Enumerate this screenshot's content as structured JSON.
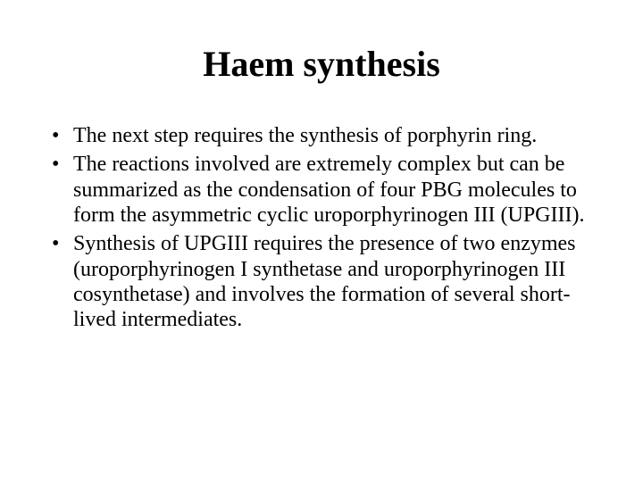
{
  "slide": {
    "title": "Haem synthesis",
    "title_fontsize": 40,
    "title_weight": "bold",
    "body_fontsize": 24,
    "font_family": "Times New Roman",
    "background_color": "#ffffff",
    "text_color": "#000000",
    "bullets": [
      "The next step requires the synthesis of porphyrin ring.",
      "The reactions involved are extremely complex but can be summarized as the condensation of four PBG molecules to form the asymmetric cyclic uroporphyrinogen III (UPGIII).",
      "Synthesis of UPGIII requires the presence of two enzymes (uroporphyrinogen I synthetase and uroporphyrinogen III cosynthetase) and involves the formation of several short-lived intermediates."
    ]
  }
}
